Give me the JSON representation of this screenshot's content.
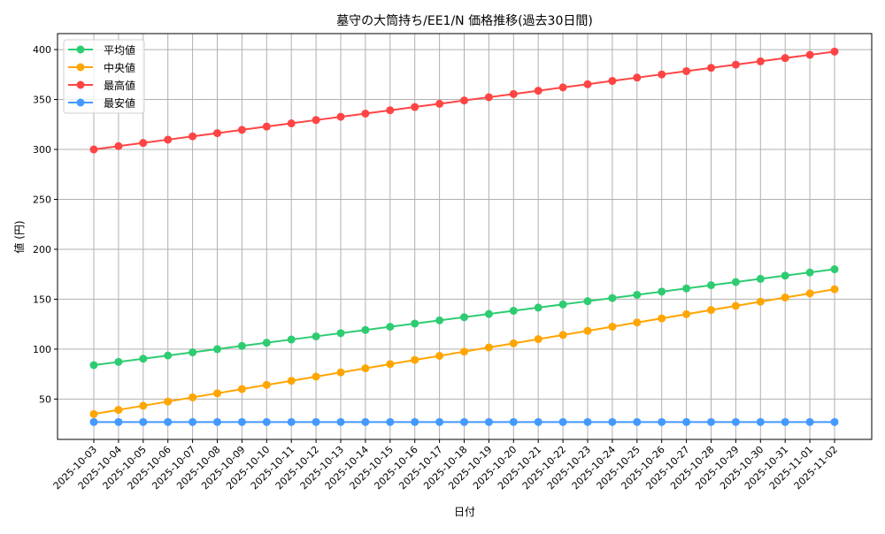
{
  "chart_data": {
    "type": "line",
    "title": "墓守の大筒持ち/EE1/N 価格推移(過去30日間)",
    "xlabel": "日付",
    "ylabel": "値 (円)",
    "ylim": [
      9.6,
      416
    ],
    "yticks": [
      50,
      100,
      150,
      200,
      250,
      300,
      350,
      400
    ],
    "grid": true,
    "legend_position": "top-left",
    "x": [
      "2025-10-03",
      "2025-10-04",
      "2025-10-05",
      "2025-10-06",
      "2025-10-07",
      "2025-10-08",
      "2025-10-09",
      "2025-10-10",
      "2025-10-11",
      "2025-10-12",
      "2025-10-13",
      "2025-10-14",
      "2025-10-15",
      "2025-10-16",
      "2025-10-17",
      "2025-10-18",
      "2025-10-19",
      "2025-10-20",
      "2025-10-21",
      "2025-10-22",
      "2025-10-23",
      "2025-10-24",
      "2025-10-25",
      "2025-10-26",
      "2025-10-27",
      "2025-10-28",
      "2025-10-29",
      "2025-10-30",
      "2025-10-31",
      "2025-11-01",
      "2025-11-02"
    ],
    "series": [
      {
        "name": "平均値",
        "color": "#2ecc71",
        "values": [
          84,
          87.2,
          90.4,
          93.6,
          96.8,
          100,
          103.2,
          106.4,
          109.6,
          112.8,
          116,
          119.2,
          122.4,
          125.6,
          128.8,
          132,
          135.2,
          138.4,
          141.6,
          144.8,
          148,
          151.2,
          154.4,
          157.6,
          160.8,
          164,
          167.2,
          170.4,
          173.6,
          176.8,
          180
        ]
      },
      {
        "name": "中央値",
        "color": "#ffa500",
        "values": [
          35,
          39.2,
          43.3,
          47.5,
          51.7,
          55.8,
          60,
          64.2,
          68.3,
          72.5,
          76.7,
          80.8,
          85,
          89.2,
          93.3,
          97.5,
          101.7,
          105.8,
          110,
          114.2,
          118.3,
          122.5,
          126.7,
          130.8,
          135,
          139.2,
          143.3,
          147.5,
          151.7,
          155.8,
          160
        ]
      },
      {
        "name": "最高値",
        "color": "#ff4444",
        "values": [
          300,
          303.3,
          306.5,
          309.8,
          313.1,
          316.3,
          319.6,
          322.9,
          326.1,
          329.4,
          332.7,
          335.9,
          339.2,
          342.5,
          345.7,
          349,
          352.3,
          355.5,
          358.8,
          362.1,
          365.3,
          368.6,
          371.9,
          375.1,
          378.4,
          381.7,
          384.9,
          388.2,
          391.5,
          394.7,
          398
        ]
      },
      {
        "name": "最安値",
        "color": "#4499ff",
        "values": [
          27,
          27,
          27,
          27,
          27,
          27,
          27,
          27,
          27,
          27,
          27,
          27,
          27,
          27,
          27,
          27,
          27,
          27,
          27,
          27,
          27,
          27,
          27,
          27,
          27,
          27,
          27,
          27,
          27,
          27,
          27
        ]
      }
    ]
  }
}
